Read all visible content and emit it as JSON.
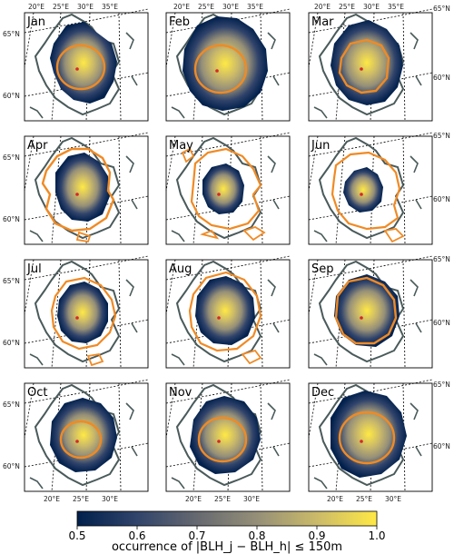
{
  "chart_data": {
    "type": "heatmap",
    "months": [
      "Jan",
      "Feb",
      "Mar",
      "Apr",
      "May",
      "Jun",
      "Jul",
      "Aug",
      "Sep",
      "Oct",
      "Nov",
      "Dec"
    ],
    "lon_ticks_top": [
      "20°E",
      "25°E",
      "30°E",
      "35°E"
    ],
    "lon_ticks_bottom": [
      "20°E",
      "25°E",
      "30°E"
    ],
    "lat_ticks_left": [
      "65°N",
      "60°N"
    ],
    "lat_ticks_right": [
      "65°N",
      "60°N"
    ],
    "colorbar": {
      "ticks": [
        "0.5",
        "0.6",
        "0.7",
        "0.8",
        "0.9",
        "1.0"
      ],
      "range": [
        0.5,
        1.0
      ],
      "label": "occurrence of |BLH_j − BLH_h| ≤ 150m",
      "colors": [
        "#00204c",
        "#31446b",
        "#666970",
        "#958f78",
        "#cbba69",
        "#ffe945"
      ]
    },
    "colors": {
      "contour": "#f08a24",
      "coast": "#4a5a5a",
      "center": "#d62728"
    }
  }
}
